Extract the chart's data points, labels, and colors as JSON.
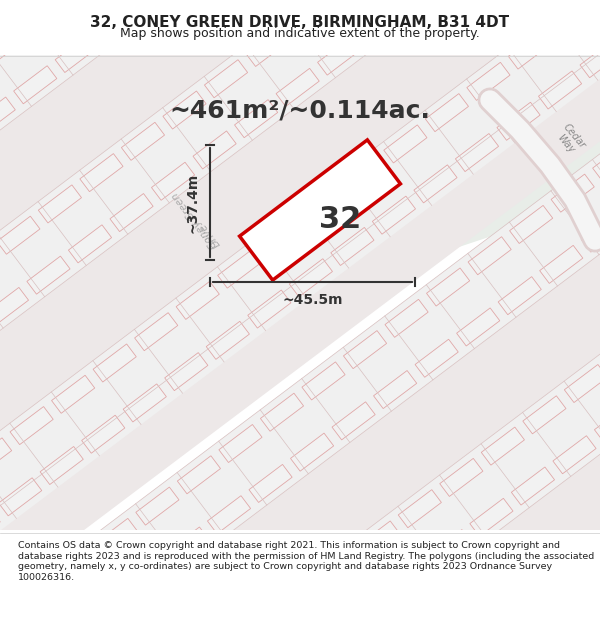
{
  "title": "32, CONEY GREEN DRIVE, BIRMINGHAM, B31 4DT",
  "subtitle": "Map shows position and indicative extent of the property.",
  "area_text": "~461m²/~0.114ac.",
  "dim_width": "~45.5m",
  "dim_height": "~37.4m",
  "property_number": "32",
  "footer": "Contains OS data © Crown copyright and database right 2021. This information is subject to Crown copyright and database rights 2023 and is reproduced with the permission of HM Land Registry. The polygons (including the associated geometry, namely x, y co-ordinates) are subject to Crown copyright and database rights 2023 Ordnance Survey 100026316.",
  "bg_color": "#f5f5f5",
  "map_bg_color": "#f0f0f0",
  "road_color": "#f5f5f5",
  "plot_color": "#ffffff",
  "plot_edge_color": "#cc0000",
  "dim_line_color": "#333333",
  "road_line_color": "#e8a0a0",
  "road_fill_color": "#f7eeee",
  "road_stripe_color": "#e8b0b0",
  "title_color": "#222222",
  "footer_color": "#222222"
}
